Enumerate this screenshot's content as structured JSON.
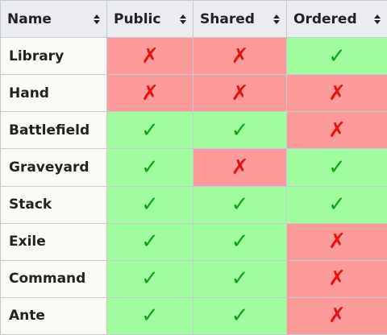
{
  "table": {
    "headers": [
      {
        "key": "name",
        "label": "Name"
      },
      {
        "key": "public",
        "label": "Public"
      },
      {
        "key": "shared",
        "label": "Shared"
      },
      {
        "key": "ordered",
        "label": "Ordered"
      }
    ],
    "rows": [
      {
        "name": "Library",
        "public": false,
        "shared": false,
        "ordered": true
      },
      {
        "name": "Hand",
        "public": false,
        "shared": false,
        "ordered": false
      },
      {
        "name": "Battlefield",
        "public": true,
        "shared": true,
        "ordered": false
      },
      {
        "name": "Graveyard",
        "public": true,
        "shared": false,
        "ordered": true
      },
      {
        "name": "Stack",
        "public": true,
        "shared": true,
        "ordered": true
      },
      {
        "name": "Exile",
        "public": true,
        "shared": true,
        "ordered": false
      },
      {
        "name": "Command",
        "public": true,
        "shared": true,
        "ordered": false
      },
      {
        "name": "Ante",
        "public": true,
        "shared": true,
        "ordered": false
      }
    ]
  },
  "symbols": {
    "yes": "✓",
    "no": "✗",
    "yes_icon": "check-icon",
    "no_icon": "cross-icon",
    "sort_icon": "sort-icon"
  },
  "colors": {
    "yes_background": "#9ffc9f",
    "no_background": "#fd9b9b",
    "check": "#15a115",
    "cross": "#e11313",
    "header_background": "#eaecf0",
    "name_background": "#fbfbf6"
  }
}
